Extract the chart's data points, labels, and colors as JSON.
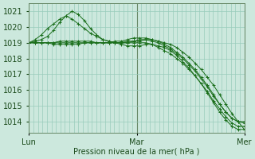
{
  "bg_color": "#cce8dd",
  "grid_color": "#99ccbb",
  "line_color": "#1a6e1a",
  "marker_color": "#1a6e1a",
  "ylabel_ticks": [
    1014,
    1015,
    1016,
    1017,
    1018,
    1019,
    1020,
    1021
  ],
  "xlim": [
    0,
    48
  ],
  "ylim": [
    1013.3,
    1021.5
  ],
  "xlabel": "Pression niveau de la mer( hPa )",
  "day_labels": [
    "Lun",
    "Mar",
    "Mer"
  ],
  "day_positions": [
    0,
    24,
    48
  ],
  "series": [
    [
      1019.0,
      1019.1,
      1019.2,
      1019.4,
      1019.8,
      1020.3,
      1020.7,
      1021.0,
      1020.8,
      1020.4,
      1019.9,
      1019.5,
      1019.2,
      1019.1,
      1019.0,
      1019.0,
      1019.0,
      1019.1,
      1019.1,
      1019.2,
      1019.2,
      1019.1,
      1019.0,
      1018.9,
      1018.7,
      1018.4,
      1018.1,
      1017.7,
      1017.3,
      1016.8,
      1016.3,
      1015.7,
      1015.1,
      1014.5,
      1014.0,
      1013.5
    ],
    [
      1019.0,
      1019.2,
      1019.5,
      1019.9,
      1020.2,
      1020.5,
      1020.7,
      1020.5,
      1020.2,
      1019.9,
      1019.6,
      1019.4,
      1019.2,
      1019.1,
      1019.0,
      1018.9,
      1018.8,
      1018.8,
      1018.8,
      1018.9,
      1018.9,
      1018.8,
      1018.7,
      1018.5,
      1018.2,
      1017.8,
      1017.4,
      1016.9,
      1016.4,
      1015.8,
      1015.2,
      1014.6,
      1014.1,
      1013.7,
      1013.5,
      1013.5
    ],
    [
      1019.0,
      1019.0,
      1019.0,
      1019.0,
      1019.0,
      1019.1,
      1019.1,
      1019.1,
      1019.1,
      1019.1,
      1019.1,
      1019.0,
      1019.0,
      1019.0,
      1019.1,
      1019.1,
      1019.2,
      1019.3,
      1019.3,
      1019.3,
      1019.2,
      1019.1,
      1018.9,
      1018.7,
      1018.4,
      1018.1,
      1017.7,
      1017.3,
      1016.8,
      1016.3,
      1015.7,
      1015.1,
      1014.6,
      1014.2,
      1014.0,
      1013.9
    ],
    [
      1019.0,
      1019.0,
      1019.0,
      1019.0,
      1019.0,
      1019.0,
      1019.0,
      1019.0,
      1019.0,
      1019.0,
      1019.0,
      1019.0,
      1019.0,
      1019.0,
      1019.0,
      1019.0,
      1019.1,
      1019.1,
      1019.2,
      1019.2,
      1019.1,
      1019.0,
      1018.8,
      1018.6,
      1018.3,
      1018.0,
      1017.6,
      1017.2,
      1016.7,
      1016.2,
      1015.6,
      1015.1,
      1014.6,
      1014.2,
      1014.0,
      1014.0
    ],
    [
      1019.0,
      1019.0,
      1019.0,
      1019.0,
      1018.9,
      1018.9,
      1018.9,
      1018.9,
      1018.9,
      1019.0,
      1019.0,
      1019.0,
      1019.0,
      1019.0,
      1019.0,
      1019.0,
      1019.0,
      1019.0,
      1019.0,
      1019.0,
      1018.9,
      1018.7,
      1018.5,
      1018.3,
      1018.0,
      1017.7,
      1017.3,
      1016.9,
      1016.4,
      1015.9,
      1015.3,
      1014.8,
      1014.3,
      1013.9,
      1013.7,
      1013.7
    ]
  ]
}
